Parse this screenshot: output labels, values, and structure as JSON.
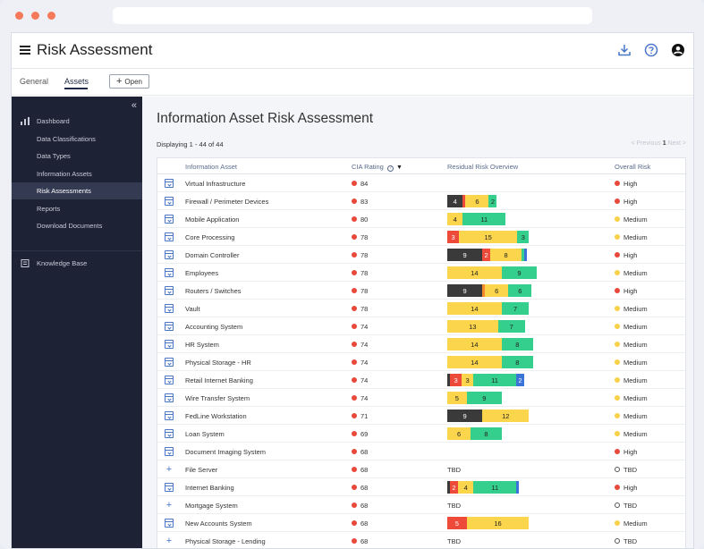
{
  "app": {
    "title": "Risk Assessment"
  },
  "tabs": [
    {
      "label": "General",
      "active": false
    },
    {
      "label": "Assets",
      "active": true
    }
  ],
  "open_button": {
    "label": "Open"
  },
  "header_icons": [
    "download-icon",
    "help-icon",
    "account-icon"
  ],
  "sidebar": {
    "collapse_icon": "double-chevron-left-icon",
    "items": [
      {
        "label": "Dashboard",
        "icon": "chart-icon",
        "active": false
      },
      {
        "label": "Data Classifications",
        "active": false
      },
      {
        "label": "Data Types",
        "active": false
      },
      {
        "label": "Information Assets",
        "active": false
      },
      {
        "label": "Risk Assessments",
        "active": true
      },
      {
        "label": "Reports",
        "active": false
      },
      {
        "label": "Download Documents",
        "active": false
      }
    ],
    "knowledge_base": {
      "label": "Knowledge Base",
      "icon": "book-icon"
    }
  },
  "main": {
    "title": "Information Asset Risk Assessment",
    "displaying": "Displaying 1 - 44 of 44",
    "pager": {
      "previous": "< Previous",
      "page": "1",
      "next": "Next >"
    },
    "columns": [
      "Information Asset",
      "CIA Rating",
      "Residual Risk Overview",
      "Overall Risk"
    ]
  },
  "colors": {
    "dark": "#3a3a3a",
    "red": "#ee4a3a",
    "orange": "#f58a2c",
    "yellow": "#fbd54b",
    "green": "#35cf8d",
    "blue": "#3b73d9",
    "high": "#e8493b",
    "medium": "#f8d04a"
  },
  "rows": [
    {
      "asset": "Virtual Infrastructure",
      "icon": "box",
      "cia": "84",
      "segments": [],
      "risk": "High"
    },
    {
      "asset": "Firewall / Perimeter Devices",
      "icon": "box",
      "cia": "83",
      "segments": [
        {
          "c": "dark",
          "v": "4"
        },
        {
          "c": "red",
          "v": ""
        },
        {
          "c": "yellow",
          "v": "6"
        },
        {
          "c": "green",
          "v": "2"
        }
      ],
      "risk": "High"
    },
    {
      "asset": "Mobile Application",
      "icon": "box",
      "cia": "80",
      "segments": [
        {
          "c": "yellow",
          "v": "4"
        },
        {
          "c": "green",
          "v": "11"
        }
      ],
      "risk": "Medium"
    },
    {
      "asset": "Core Processing",
      "icon": "box",
      "cia": "78",
      "segments": [
        {
          "c": "red",
          "v": "3"
        },
        {
          "c": "yellow",
          "v": "15"
        },
        {
          "c": "green",
          "v": "3"
        }
      ],
      "risk": "Medium"
    },
    {
      "asset": "Domain Controller",
      "icon": "box",
      "cia": "78",
      "segments": [
        {
          "c": "dark",
          "v": "9"
        },
        {
          "c": "red",
          "v": "2"
        },
        {
          "c": "yellow",
          "v": "8"
        },
        {
          "c": "green",
          "v": ""
        },
        {
          "c": "blue",
          "v": ""
        }
      ],
      "risk": "High"
    },
    {
      "asset": "Employees",
      "icon": "box",
      "cia": "78",
      "segments": [
        {
          "c": "yellow",
          "v": "14"
        },
        {
          "c": "green",
          "v": "9"
        }
      ],
      "risk": "Medium"
    },
    {
      "asset": "Routers / Switches",
      "icon": "box",
      "cia": "78",
      "segments": [
        {
          "c": "dark",
          "v": "9"
        },
        {
          "c": "orange",
          "v": ""
        },
        {
          "c": "yellow",
          "v": "6"
        },
        {
          "c": "green",
          "v": "6"
        }
      ],
      "risk": "High"
    },
    {
      "asset": "Vault",
      "icon": "box",
      "cia": "78",
      "segments": [
        {
          "c": "yellow",
          "v": "14"
        },
        {
          "c": "green",
          "v": "7"
        }
      ],
      "risk": "Medium"
    },
    {
      "asset": "Accounting System",
      "icon": "box",
      "cia": "74",
      "segments": [
        {
          "c": "yellow",
          "v": "13"
        },
        {
          "c": "green",
          "v": "7"
        }
      ],
      "risk": "Medium"
    },
    {
      "asset": "HR System",
      "icon": "box",
      "cia": "74",
      "segments": [
        {
          "c": "yellow",
          "v": "14"
        },
        {
          "c": "green",
          "v": "8"
        }
      ],
      "risk": "Medium"
    },
    {
      "asset": "Physical Storage - HR",
      "icon": "box",
      "cia": "74",
      "segments": [
        {
          "c": "yellow",
          "v": "14"
        },
        {
          "c": "green",
          "v": "8"
        }
      ],
      "risk": "Medium"
    },
    {
      "asset": "Retail Internet Banking",
      "icon": "box",
      "cia": "74",
      "segments": [
        {
          "c": "dark",
          "v": ""
        },
        {
          "c": "red",
          "v": "3"
        },
        {
          "c": "yellow",
          "v": "3"
        },
        {
          "c": "green",
          "v": "11"
        },
        {
          "c": "blue",
          "v": "2"
        }
      ],
      "risk": "Medium"
    },
    {
      "asset": "Wire Transfer System",
      "icon": "box",
      "cia": "74",
      "segments": [
        {
          "c": "yellow",
          "v": "5"
        },
        {
          "c": "green",
          "v": "9"
        }
      ],
      "risk": "Medium"
    },
    {
      "asset": "FedLine Workstation",
      "icon": "box",
      "cia": "71",
      "segments": [
        {
          "c": "dark",
          "v": "9"
        },
        {
          "c": "yellow",
          "v": "12"
        }
      ],
      "risk": "Medium"
    },
    {
      "asset": "Loan System",
      "icon": "box",
      "cia": "69",
      "segments": [
        {
          "c": "yellow",
          "v": "6"
        },
        {
          "c": "green",
          "v": "8"
        }
      ],
      "risk": "Medium"
    },
    {
      "asset": "Document Imaging System",
      "icon": "box",
      "cia": "68",
      "segments": [],
      "risk": "High"
    },
    {
      "asset": "File Server",
      "icon": "plus",
      "cia": "68",
      "tbd": "TBD",
      "segments": [],
      "risk": "TBD"
    },
    {
      "asset": "Internet Banking",
      "icon": "box",
      "cia": "68",
      "segments": [
        {
          "c": "dark",
          "v": ""
        },
        {
          "c": "red",
          "v": "2"
        },
        {
          "c": "yellow",
          "v": "4"
        },
        {
          "c": "green",
          "v": "11"
        },
        {
          "c": "blue",
          "v": ""
        }
      ],
      "risk": "High"
    },
    {
      "asset": "Mortgage System",
      "icon": "plus",
      "cia": "68",
      "tbd": "TBD",
      "segments": [],
      "risk": "TBD"
    },
    {
      "asset": "New Accounts System",
      "icon": "box",
      "cia": "68",
      "segments": [
        {
          "c": "red",
          "v": "5"
        },
        {
          "c": "yellow",
          "v": "16"
        }
      ],
      "risk": "Medium"
    },
    {
      "asset": "Physical Storage - Lending",
      "icon": "plus",
      "cia": "68",
      "tbd": "TBD",
      "segments": [],
      "risk": "TBD"
    }
  ]
}
